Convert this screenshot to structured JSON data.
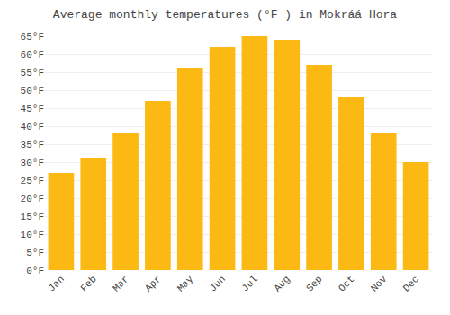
{
  "chart_data": {
    "type": "bar",
    "title": "Average monthly temperatures (°F ) in Mokráá Hora",
    "categories": [
      "Jan",
      "Feb",
      "Mar",
      "Apr",
      "May",
      "Jun",
      "Jul",
      "Aug",
      "Sep",
      "Oct",
      "Nov",
      "Dec"
    ],
    "values": [
      27,
      31,
      38,
      47,
      56,
      62,
      65,
      64,
      57,
      48,
      38,
      30
    ],
    "color": "#FDB913",
    "ylim": [
      0,
      65
    ],
    "yticks": [
      {
        "value": 0,
        "label": "0°F"
      },
      {
        "value": 5,
        "label": "5°F"
      },
      {
        "value": 10,
        "label": "10°F"
      },
      {
        "value": 15,
        "label": "15°F"
      },
      {
        "value": 20,
        "label": "20°F"
      },
      {
        "value": 25,
        "label": "25°F"
      },
      {
        "value": 30,
        "label": "30°F"
      },
      {
        "value": 35,
        "label": "35°F"
      },
      {
        "value": 40,
        "label": "40°F"
      },
      {
        "value": 45,
        "label": "45°F"
      },
      {
        "value": 50,
        "label": "50°F"
      },
      {
        "value": 55,
        "label": "55°F"
      },
      {
        "value": 60,
        "label": "60°F"
      },
      {
        "value": 65,
        "label": "65°F"
      }
    ],
    "grid": true
  }
}
